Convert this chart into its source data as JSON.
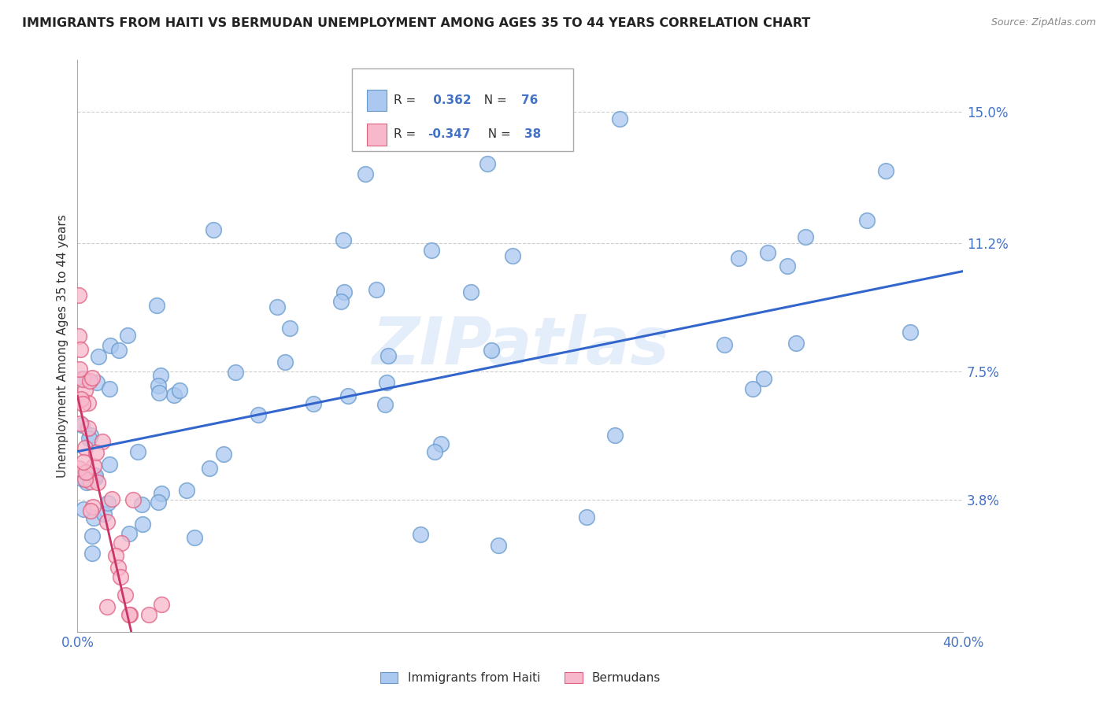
{
  "title": "IMMIGRANTS FROM HAITI VS BERMUDAN UNEMPLOYMENT AMONG AGES 35 TO 44 YEARS CORRELATION CHART",
  "source": "Source: ZipAtlas.com",
  "ylabel": "Unemployment Among Ages 35 to 44 years",
  "xlim": [
    0.0,
    0.4
  ],
  "ylim": [
    0.0,
    0.165
  ],
  "xticks": [
    0.0,
    0.05,
    0.1,
    0.15,
    0.2,
    0.25,
    0.3,
    0.35,
    0.4
  ],
  "ytick_positions": [
    0.0,
    0.038,
    0.075,
    0.112,
    0.15
  ],
  "ytick_labels": [
    "",
    "3.8%",
    "7.5%",
    "11.2%",
    "15.0%"
  ],
  "grid_color": "#cccccc",
  "background_color": "#ffffff",
  "series1_color": "#aac8f0",
  "series1_edge_color": "#6699cc",
  "series2_color": "#f8b8cc",
  "series2_edge_color": "#e06080",
  "trend1_color": "#3366cc",
  "trend2_color": "#cc3366",
  "legend_label1": "Immigrants from Haiti",
  "legend_label2": "Bermudans",
  "haiti_slope": 0.13,
  "haiti_intercept": 0.052,
  "bermuda_slope": -2.8,
  "bermuda_intercept": 0.068
}
